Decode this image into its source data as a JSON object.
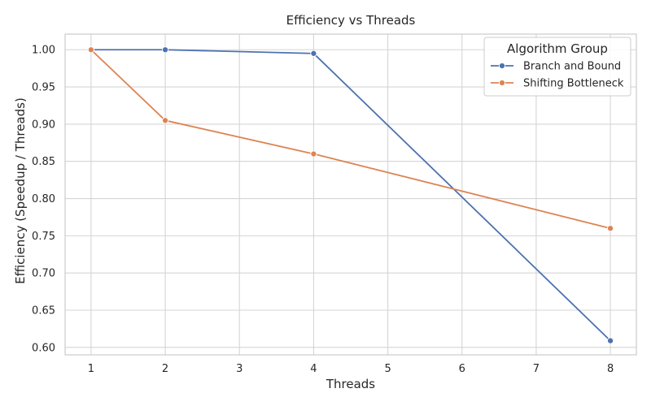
{
  "chart_data": {
    "type": "line",
    "title": "Efficiency vs Threads",
    "xlabel": "Threads",
    "ylabel": "Efficiency (Speedup / Threads)",
    "xlim": [
      0.65,
      8.35
    ],
    "ylim": [
      0.59,
      1.021
    ],
    "x_ticks": [
      1,
      2,
      3,
      4,
      5,
      6,
      7,
      8
    ],
    "y_ticks": [
      0.6,
      0.65,
      0.7,
      0.75,
      0.8,
      0.85,
      0.9,
      0.95,
      1.0
    ],
    "grid": true,
    "legend": {
      "title": "Algorithm Group",
      "position": "top-right"
    },
    "series": [
      {
        "name": "Branch and Bound",
        "color": "#4c72b0",
        "x": [
          1,
          2,
          4,
          8
        ],
        "y": [
          1.0,
          1.0,
          0.995,
          0.609
        ]
      },
      {
        "name": "Shifting Bottleneck",
        "color": "#dd8452",
        "x": [
          1,
          2,
          4,
          8
        ],
        "y": [
          1.0,
          0.905,
          0.86,
          0.76
        ]
      }
    ]
  }
}
